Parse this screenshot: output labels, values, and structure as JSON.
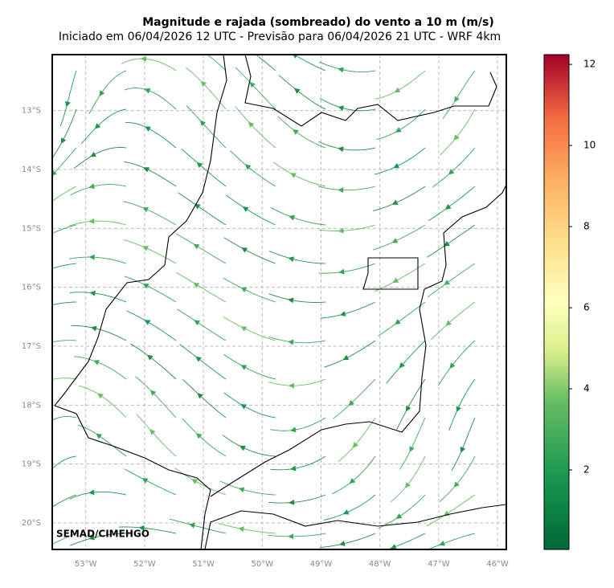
{
  "title": "Magnitude e rajada (sombreado) do vento a 10 m (m/s)",
  "subtitle": "Iniciado em 06/04/2026 12 UTC - Previsão para 06/04/2026 21 UTC - WRF 4km",
  "credit": "SEMAD/CIMEHGO",
  "map": {
    "xlim": [
      -53.57,
      -45.85
    ],
    "ylim": [
      -20.45,
      -12.05
    ],
    "xticks": [
      {
        "value": -53,
        "label": "53°W"
      },
      {
        "value": -52,
        "label": "52°W"
      },
      {
        "value": -51,
        "label": "51°W"
      },
      {
        "value": -50,
        "label": "50°W"
      },
      {
        "value": -49,
        "label": "49°W"
      },
      {
        "value": -48,
        "label": "48°W"
      },
      {
        "value": -47,
        "label": "47°W"
      },
      {
        "value": -46,
        "label": "46°W"
      }
    ],
    "yticks": [
      {
        "value": -13,
        "label": "13°S"
      },
      {
        "value": -14,
        "label": "14°S"
      },
      {
        "value": -15,
        "label": "15°S"
      },
      {
        "value": -16,
        "label": "16°S"
      },
      {
        "value": -17,
        "label": "17°S"
      },
      {
        "value": -18,
        "label": "18°S"
      },
      {
        "value": -19,
        "label": "19°S"
      },
      {
        "value": -20,
        "label": "20°S"
      }
    ]
  },
  "colorbar": {
    "lim": [
      0.04,
      12.24
    ],
    "ticks": [
      2,
      4,
      6,
      8,
      10,
      12
    ]
  }
}
